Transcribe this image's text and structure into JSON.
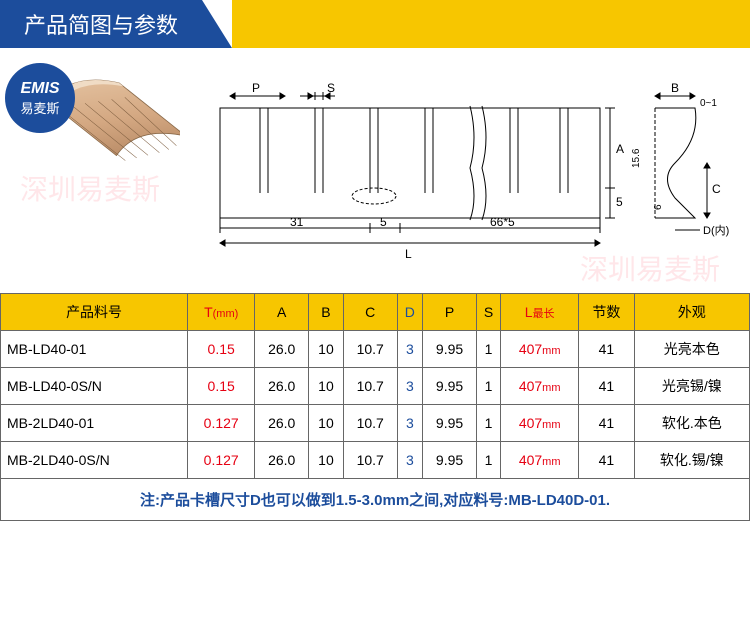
{
  "header": {
    "title": "产品简图与参数"
  },
  "badge": {
    "en": "EMIS",
    "cn": "易麦斯"
  },
  "watermarks": {
    "wm1": "深圳易麦斯",
    "wm2": "深圳易麦斯"
  },
  "diagram": {
    "labels": {
      "P": "P",
      "S": "S",
      "A": "A",
      "B": "B",
      "C": "C",
      "L": "L",
      "D": "D(内)",
      "dim31": "31",
      "dim5": "5",
      "dim66x5": "66*5",
      "dim5v": "5",
      "dim156": "15.6",
      "dim6": "6",
      "dim01": "0~1"
    }
  },
  "table": {
    "headers": [
      "产品料号",
      "T(mm)",
      "A",
      "B",
      "C",
      "D",
      "P",
      "S",
      "L最长",
      "节数",
      "外观"
    ],
    "rows": [
      [
        "MB-LD40-01",
        "0.15",
        "26.0",
        "10",
        "10.7",
        "3",
        "9.95",
        "1",
        "407mm",
        "41",
        "光亮本色"
      ],
      [
        "MB-LD40-0S/N",
        "0.15",
        "26.0",
        "10",
        "10.7",
        "3",
        "9.95",
        "1",
        "407mm",
        "41",
        "光亮锡/镍"
      ],
      [
        "MB-2LD40-01",
        "0.127",
        "26.0",
        "10",
        "10.7",
        "3",
        "9.95",
        "1",
        "407mm",
        "41",
        "软化.本色"
      ],
      [
        "MB-2LD40-0S/N",
        "0.127",
        "26.0",
        "10",
        "10.7",
        "3",
        "9.95",
        "1",
        "407mm",
        "41",
        "软化.锡/镍"
      ]
    ],
    "note": "注:产品卡槽尺寸D也可以做到1.5-3.0mm之间,对应料号:MB-LD40D-01."
  },
  "colors": {
    "blue": "#1c4d9c",
    "yellow": "#f7c600",
    "red": "#e60012",
    "copper1": "#d4a882",
    "copper2": "#b58a68"
  }
}
